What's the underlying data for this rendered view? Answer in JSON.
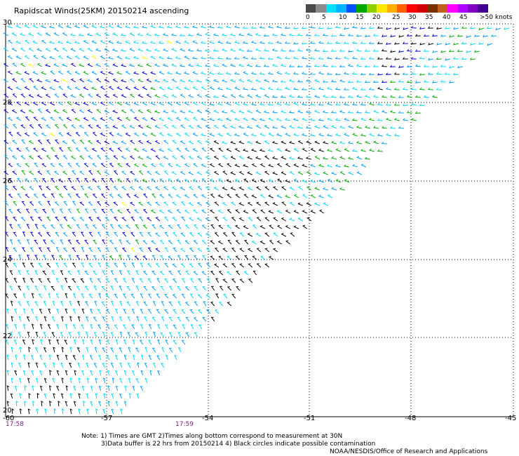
{
  "title": "Rapidscat Winds(25KM) 20150214 ascending",
  "legend": {
    "labels": [
      "0",
      "5",
      "10",
      "15",
      "20",
      "25",
      "30",
      "35",
      "40",
      "45",
      ">50 knots"
    ],
    "colors": [
      "#4a4a4a",
      "#8a8a8a",
      "#00e0ff",
      "#00b4ff",
      "#0050ff",
      "#00a800",
      "#90d000",
      "#ffe800",
      "#ffb000",
      "#ff6000",
      "#ff0000",
      "#d00000",
      "#7a3000",
      "#c06020",
      "#ff00ff",
      "#b000ff",
      "#8000c0",
      "#400090"
    ]
  },
  "axes": {
    "lon_labels": [
      "-60",
      "-57",
      "-54",
      "-51",
      "-48",
      "-45"
    ],
    "lat_labels": [
      "30",
      "28",
      "26",
      "24",
      "22",
      "20"
    ]
  },
  "times": [
    "17:58",
    "17:59"
  ],
  "notes": [
    "Note: 1) Times are GMT 2)Times along bottom correspond to measurement at 30N",
    "3)Data buffer is 22 hrs from 20150214 4) Black circles indicate possible contamination",
    "NOAA/NESDIS/Office of Research and Applications"
  ],
  "colors": {
    "dark": "#000000",
    "cyan": "#00d8ff",
    "light_blue": "#00a0ff",
    "blue": "#0000e0",
    "green": "#00b000",
    "yellow": "#ffff00"
  }
}
